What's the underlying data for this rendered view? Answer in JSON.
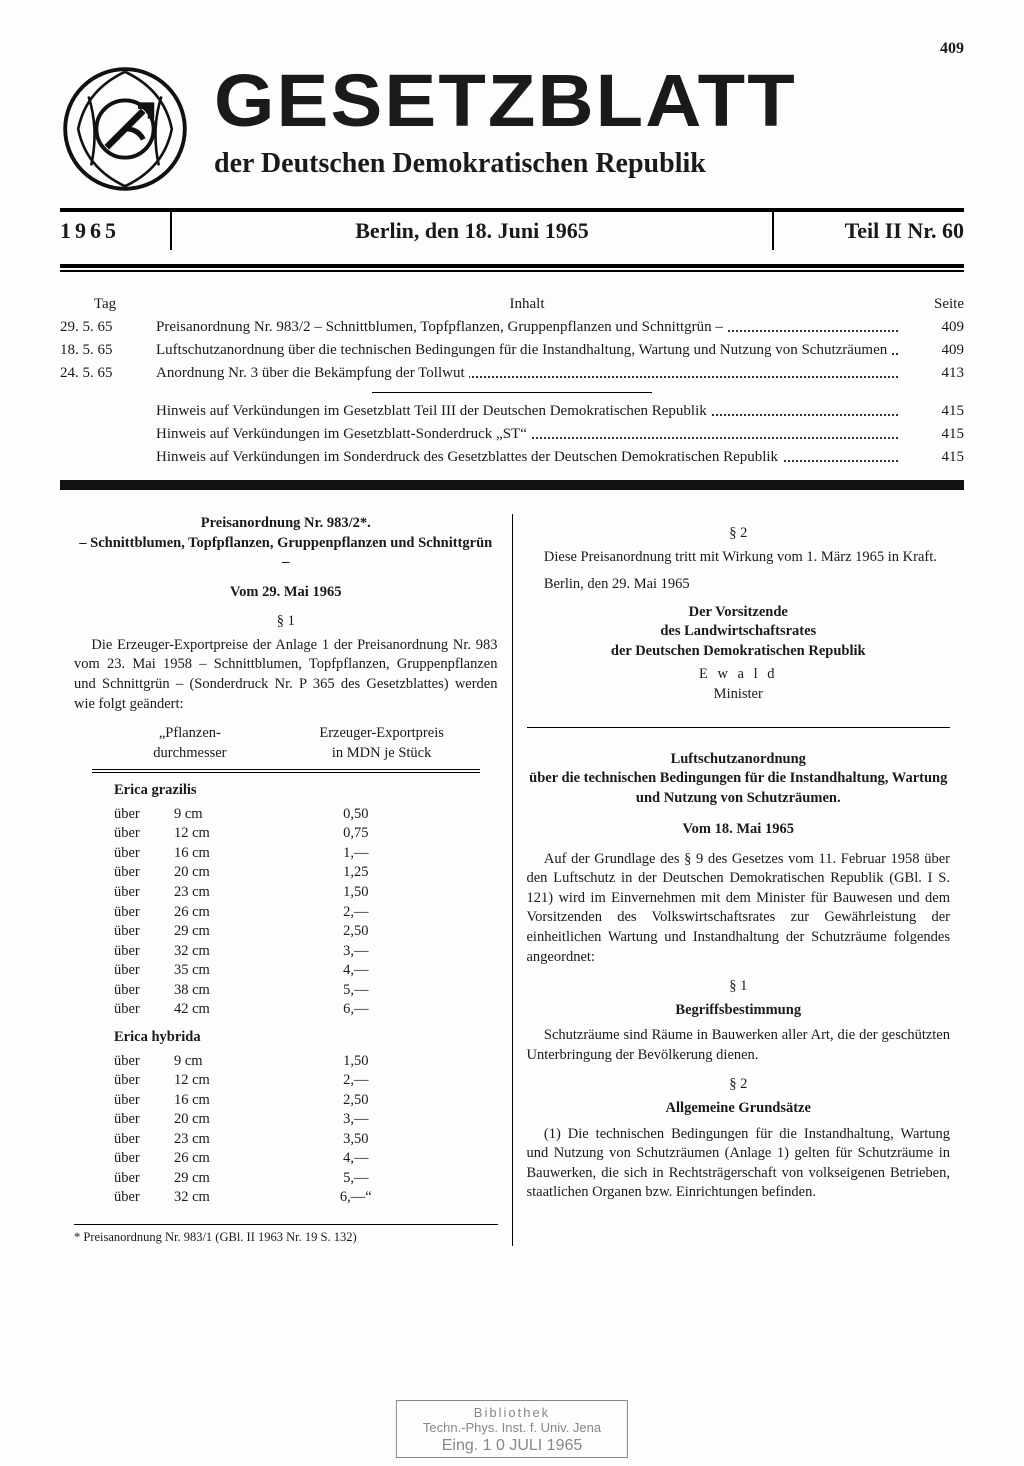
{
  "page_number_top": "409",
  "masthead": {
    "title": "GESETZBLATT",
    "subtitle": "der Deutschen Demokratischen Republik"
  },
  "dateline": {
    "year": "1965",
    "location_date": "Berlin, den 18. Juni 1965",
    "part": "Teil II  Nr. 60"
  },
  "toc": {
    "head_day": "Tag",
    "head_content": "Inhalt",
    "head_page": "Seite",
    "rows": [
      {
        "date": "29. 5. 65",
        "text": "Preisanordnung Nr. 983/2 – Schnittblumen, Topfpflanzen, Gruppenpflanzen und Schnittgrün –",
        "page": "409"
      },
      {
        "date": "18. 5. 65",
        "text": "Luftschutzanordnung über die technischen Bedingungen für die Instandhaltung, Wartung und Nutzung von Schutzräumen",
        "page": "409"
      },
      {
        "date": "24. 5. 65",
        "text": "Anordnung Nr. 3 über die Bekämpfung der Tollwut",
        "page": "413"
      },
      {
        "date": "",
        "text": "Hinweis auf Verkündungen im Gesetzblatt Teil III der Deutschen Demokratischen Republik",
        "page": "415"
      },
      {
        "date": "",
        "text": "Hinweis auf Verkündungen im Gesetzblatt-Sonderdruck „ST“",
        "page": "415"
      },
      {
        "date": "",
        "text": "Hinweis auf Verkündungen im Sonderdruck des Gesetzblattes der Deutschen Demokratischen Republik",
        "page": "415"
      }
    ]
  },
  "left": {
    "title1": "Preisanordnung Nr. 983/2*.",
    "title2": "– Schnittblumen, Topfpflanzen, Gruppenpflanzen und Schnittgrün –",
    "date": "Vom 29. Mai 1965",
    "s1": "§ 1",
    "p1": "Die Erzeuger-Exportpreise der Anlage 1 der Preisanordnung Nr. 983 vom 23. Mai 1958 – Schnittblumen, Topfpflanzen, Gruppenpflanzen und Schnittgrün – (Sonderdruck Nr. P 365 des Gesetzblattes) werden wie folgt geändert:",
    "th1a": "„Pflanzen-",
    "th1b": "durchmesser",
    "th2a": "Erzeuger-Exportpreis",
    "th2b": "in MDN je Stück",
    "species1": "Erica  grazilis",
    "rows1": [
      {
        "a": "über",
        "b": "9 cm",
        "c": "0,50"
      },
      {
        "a": "über",
        "b": "12 cm",
        "c": "0,75"
      },
      {
        "a": "über",
        "b": "16 cm",
        "c": "1,—"
      },
      {
        "a": "über",
        "b": "20 cm",
        "c": "1,25"
      },
      {
        "a": "über",
        "b": "23 cm",
        "c": "1,50"
      },
      {
        "a": "über",
        "b": "26 cm",
        "c": "2,—"
      },
      {
        "a": "über",
        "b": "29 cm",
        "c": "2,50"
      },
      {
        "a": "über",
        "b": "32 cm",
        "c": "3,—"
      },
      {
        "a": "über",
        "b": "35 cm",
        "c": "4,—"
      },
      {
        "a": "über",
        "b": "38 cm",
        "c": "5,—"
      },
      {
        "a": "über",
        "b": "42 cm",
        "c": "6,—"
      }
    ],
    "species2": "Erica  hybrida",
    "rows2": [
      {
        "a": "über",
        "b": "9 cm",
        "c": "1,50"
      },
      {
        "a": "über",
        "b": "12 cm",
        "c": "2,—"
      },
      {
        "a": "über",
        "b": "16 cm",
        "c": "2,50"
      },
      {
        "a": "über",
        "b": "20 cm",
        "c": "3,—"
      },
      {
        "a": "über",
        "b": "23 cm",
        "c": "3,50"
      },
      {
        "a": "über",
        "b": "26 cm",
        "c": "4,—"
      },
      {
        "a": "über",
        "b": "29 cm",
        "c": "5,—"
      },
      {
        "a": "über",
        "b": "32 cm",
        "c": "6,—“"
      }
    ],
    "footnote": "*  Preisanordnung  Nr. 983/1  (GBl. II  1963  Nr. 19  S. 132)"
  },
  "right": {
    "s2": "§ 2",
    "p2": "Diese Preisanordnung tritt mit Wirkung vom 1. März 1965 in Kraft.",
    "place_date": "Berlin, den 29. Mai 1965",
    "sig1": "Der Vorsitzende",
    "sig2": "des Landwirtschaftsrates",
    "sig3": "der Deutschen Demokratischen Republik",
    "sig_name": "E w a l d",
    "sig_role": "Minister",
    "h1": "Luftschutzanordnung",
    "h2": "über die technischen Bedingungen für die Instandhaltung, Wartung und Nutzung von Schutzräumen.",
    "h_date": "Vom 18. Mai 1965",
    "intro": "Auf der Grundlage des § 9 des Gesetzes vom 11. Februar 1958 über den Luftschutz in der Deutschen Demokratischen Republik (GBl. I S. 121) wird im Einvernehmen mit dem Minister für Bauwesen und dem Vorsitzenden des Volkswirtschaftsrates zur Gewährleistung der einheitlichen Wartung und Instandhaltung der Schutzräume folgendes angeordnet:",
    "sec1": "§ 1",
    "sec1_t": "Begriffsbestimmung",
    "sec1_p": "Schutzräume sind Räume in Bauwerken aller Art, die der geschützten Unterbringung der Bevölkerung dienen.",
    "sec2": "§ 2",
    "sec2_t": "Allgemeine Grundsätze",
    "sec2_p": "(1) Die technischen Bedingungen für die Instandhaltung, Wartung und Nutzung von Schutzräumen (Anlage 1) gelten  für Schutzräume in Bauwerken, die sich in Rechtsträgerschaft von volkseigenen Betrieben, staatlichen Organen bzw. Einrichtungen befinden."
  },
  "stamp": {
    "l1": "Bibliothek",
    "l2": "Techn.-Phys. Inst. f. Univ. Jena",
    "l3": "Eing.    1 0 JULI 1965"
  }
}
